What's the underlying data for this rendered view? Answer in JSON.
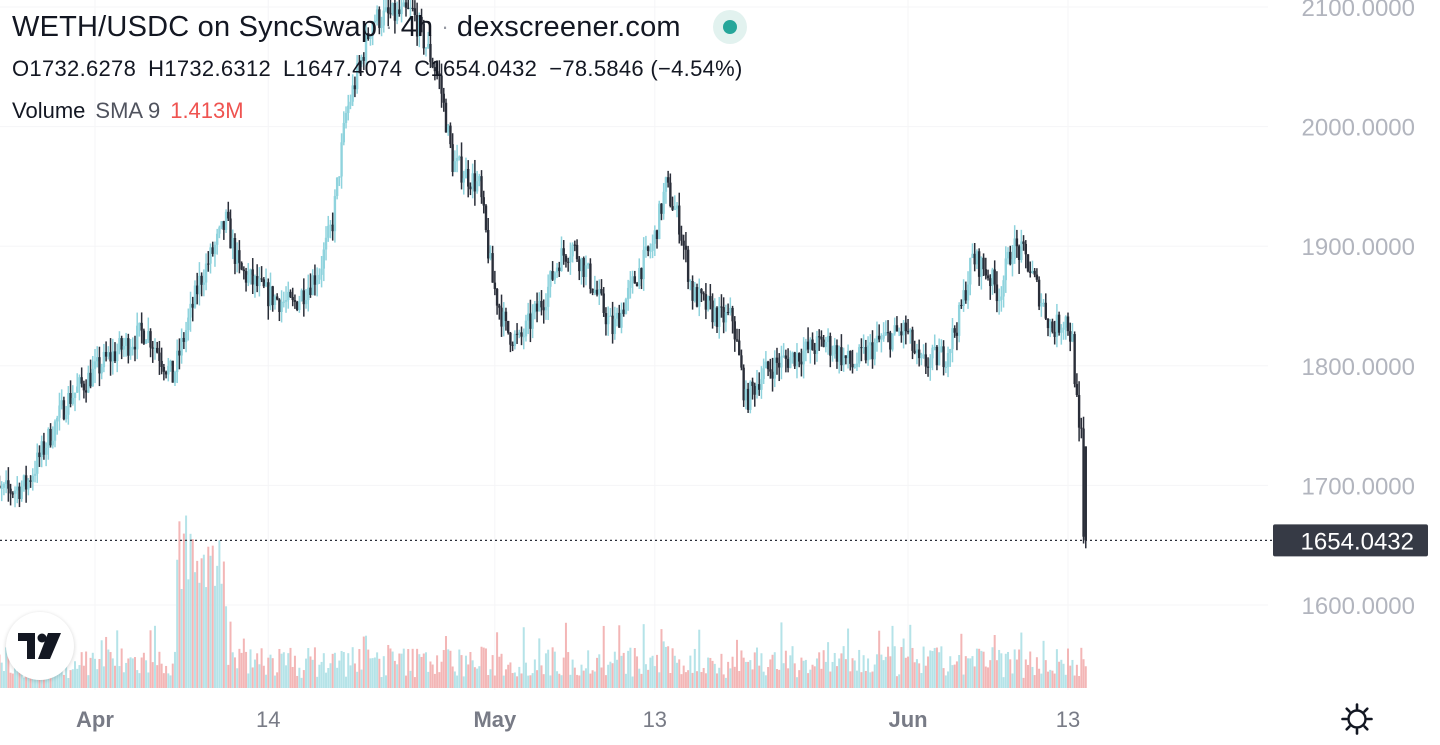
{
  "header": {
    "pair": "WETH/USDC on SyncSwap",
    "interval": "4h",
    "source": "dexscreener.com",
    "status_color": "#26a69a"
  },
  "ohlc": {
    "open_label": "O",
    "open": "1732.6278",
    "high_label": "H",
    "high": "1732.6312",
    "low_label": "L",
    "low": "1647.4074",
    "close_label": "C",
    "close": "1654.0432",
    "change": "−78.5846 (−4.54%)"
  },
  "volume": {
    "label": "Volume",
    "sma_label": "SMA 9",
    "value": "1.413M",
    "value_color": "#ef5350"
  },
  "price_line": {
    "value": 1654.0432,
    "label": "1654.0432"
  },
  "colors": {
    "up": "#8fd3dd",
    "down": "#2a2e39",
    "vol_up": "#b5e3e8",
    "vol_down": "#f3b6b6",
    "axis_text": "#b2b5be",
    "badge_bg": "#363a45"
  },
  "icons": {
    "logo": "tradingview-logo-icon",
    "settings": "gear-icon"
  },
  "chart_data": {
    "type": "candlestick",
    "y_axis": {
      "ticks": [
        1600,
        1700,
        1800,
        1900,
        2000,
        2100
      ],
      "tick_labels": [
        "1600.0000",
        "1700.0000",
        "1800.0000",
        "1900.0000",
        "2000.0000",
        "2100.0000"
      ],
      "range": [
        1532,
        2108
      ]
    },
    "x_axis": {
      "labels": [
        "Apr",
        "14",
        "May",
        "13",
        "Jun",
        "13"
      ],
      "label_dates": [
        "2023-04-01",
        "2023-04-14",
        "2023-05-01",
        "2023-05-13",
        "2023-06-01",
        "2023-06-13"
      ],
      "range": [
        "2023-03-24",
        "2023-06-14"
      ]
    },
    "close_trend": [
      [
        "2023-03-24",
        1690
      ],
      [
        "2023-03-27",
        1700
      ],
      [
        "2023-03-30",
        1770
      ],
      [
        "2023-04-02",
        1805
      ],
      [
        "2023-04-05",
        1830
      ],
      [
        "2023-04-07",
        1790
      ],
      [
        "2023-04-09",
        1870
      ],
      [
        "2023-04-11",
        1920
      ],
      [
        "2023-04-12",
        1880
      ],
      [
        "2023-04-14",
        1860
      ],
      [
        "2023-04-16",
        1850
      ],
      [
        "2023-04-18",
        1880
      ],
      [
        "2023-04-19",
        1920
      ],
      [
        "2023-04-20",
        2010
      ],
      [
        "2023-04-22",
        2090
      ],
      [
        "2023-04-25",
        2095
      ],
      [
        "2023-04-27",
        2040
      ],
      [
        "2023-04-28",
        1970
      ],
      [
        "2023-04-30",
        1950
      ],
      [
        "2023-05-01",
        1870
      ],
      [
        "2023-05-02",
        1830
      ],
      [
        "2023-05-03",
        1820
      ],
      [
        "2023-05-05",
        1860
      ],
      [
        "2023-05-06",
        1890
      ],
      [
        "2023-05-07",
        1900
      ],
      [
        "2023-05-08",
        1880
      ],
      [
        "2023-05-10",
        1830
      ],
      [
        "2023-05-12",
        1880
      ],
      [
        "2023-05-13",
        1900
      ],
      [
        "2023-05-14",
        1950
      ],
      [
        "2023-05-15",
        1920
      ],
      [
        "2023-05-16",
        1860
      ],
      [
        "2023-05-18",
        1840
      ],
      [
        "2023-05-19",
        1840
      ],
      [
        "2023-05-20",
        1770
      ],
      [
        "2023-05-21",
        1790
      ],
      [
        "2023-05-22",
        1800
      ],
      [
        "2023-05-24",
        1810
      ],
      [
        "2023-05-26",
        1820
      ],
      [
        "2023-05-28",
        1800
      ],
      [
        "2023-05-30",
        1820
      ],
      [
        "2023-06-01",
        1830
      ],
      [
        "2023-06-02",
        1800
      ],
      [
        "2023-06-04",
        1810
      ],
      [
        "2023-06-05",
        1840
      ],
      [
        "2023-06-06",
        1890
      ],
      [
        "2023-06-07",
        1880
      ],
      [
        "2023-06-08",
        1860
      ],
      [
        "2023-06-09",
        1900
      ],
      [
        "2023-06-10",
        1890
      ],
      [
        "2023-06-12",
        1830
      ],
      [
        "2023-06-13",
        1840
      ],
      [
        "2023-06-13T12:00",
        1820
      ],
      [
        "2023-06-14",
        1740
      ],
      [
        "2023-06-14T04:00",
        1740
      ],
      [
        "2023-06-14T08:00",
        1654
      ]
    ],
    "last_candle": {
      "open": 1732.6278,
      "high": 1732.6312,
      "low": 1647.4074,
      "close": 1654.0432
    }
  }
}
